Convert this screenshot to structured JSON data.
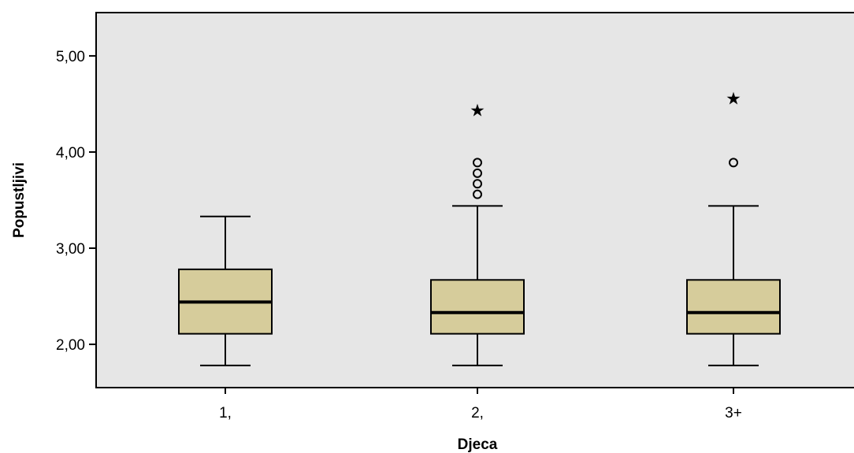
{
  "chart_data": {
    "type": "boxplot",
    "xlabel": "Djeca",
    "ylabel": "Popustljivi",
    "ylim": [
      1.55,
      5.45
    ],
    "yticks": [
      {
        "value": 2,
        "label": "2,00"
      },
      {
        "value": 3,
        "label": "3,00"
      },
      {
        "value": 4,
        "label": "4,00"
      },
      {
        "value": 5,
        "label": "5,00"
      }
    ],
    "categories": [
      "1,",
      "2,",
      "3+"
    ],
    "boxes": [
      {
        "category": "1,",
        "whisker_low": 1.78,
        "q1": 2.11,
        "median": 2.44,
        "q3": 2.78,
        "whisker_high": 3.33,
        "outliers": [],
        "extremes": []
      },
      {
        "category": "2,",
        "whisker_low": 1.78,
        "q1": 2.11,
        "median": 2.33,
        "q3": 2.67,
        "whisker_high": 3.44,
        "outliers": [
          3.56,
          3.67,
          3.78,
          3.89
        ],
        "extremes": [
          4.44
        ]
      },
      {
        "category": "3+",
        "whisker_low": 1.78,
        "q1": 2.11,
        "median": 2.33,
        "q3": 2.67,
        "whisker_high": 3.44,
        "outliers": [
          3.89
        ],
        "extremes": [
          4.56
        ]
      }
    ],
    "colors": {
      "box_fill": "#d6cc9b",
      "plot_bg": "#e6e6e6",
      "stroke": "#000000"
    },
    "grid": false
  }
}
